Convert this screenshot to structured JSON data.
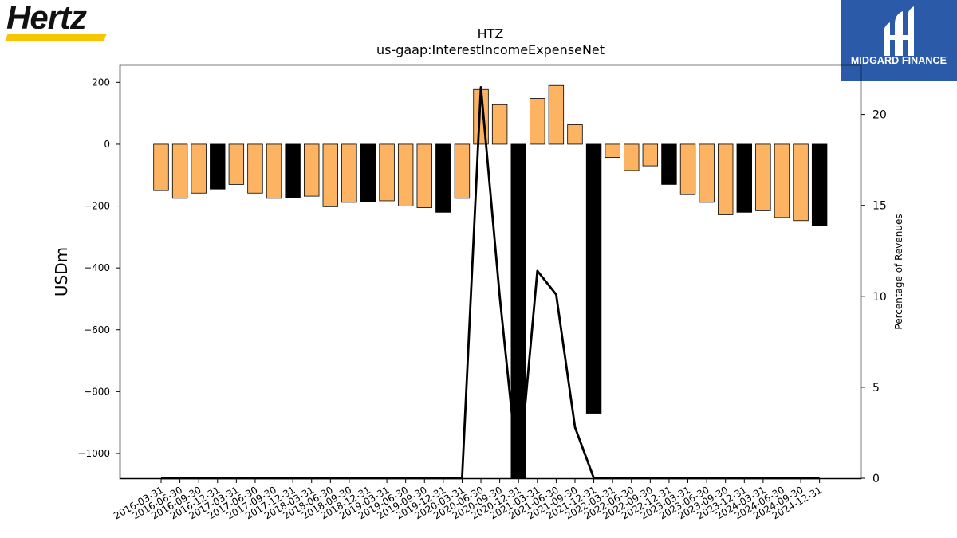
{
  "logos": {
    "company": "Hertz",
    "publisher": "MIDGARD FINANCE"
  },
  "colors": {
    "bar_quarter": "#fdb462",
    "bar_q4": "#000000",
    "line": "#000000",
    "logo_yellow": "#f7c600",
    "logo_blue": "#2a5aa8"
  },
  "chart_data": {
    "type": "bar",
    "title": "HTZ",
    "subtitle": "us-gaap:InterestIncomeExpenseNet",
    "ylabel": "USDm",
    "y2label": "Percentage of Revenues",
    "ylim": [
      -1080,
      255
    ],
    "y2lim": [
      0,
      22.7
    ],
    "yticks": [
      200,
      0,
      -200,
      -400,
      -600,
      -800,
      -1000
    ],
    "y2ticks": [
      0,
      5,
      10,
      15,
      20
    ],
    "grid": false,
    "legend": "none",
    "categories": [
      "2016-03-31",
      "2016-06-30",
      "2016-09-30",
      "2016-12-31",
      "2017-03-31",
      "2017-06-30",
      "2017-09-30",
      "2017-12-31",
      "2018-03-31",
      "2018-06-30",
      "2018-09-30",
      "2018-12-31",
      "2019-03-31",
      "2019-06-30",
      "2019-09-30",
      "2019-12-31",
      "2020-03-31",
      "2020-06-30",
      "2020-09-30",
      "2020-12-31",
      "2021-03-31",
      "2021-06-30",
      "2021-09-30",
      "2021-12-31",
      "2022-03-31",
      "2022-06-30",
      "2022-09-30",
      "2022-12-31",
      "2023-03-31",
      "2023-06-30",
      "2023-09-30",
      "2023-12-31",
      "2024-03-31",
      "2024-06-30",
      "2024-09-30",
      "2024-12-31"
    ],
    "series": [
      {
        "axis": "left",
        "kind": "bar",
        "values": [
          -150,
          -175,
          -158,
          -145,
          -130,
          -158,
          -175,
          -172,
          -168,
          -202,
          -188,
          -185,
          -183,
          -200,
          -205,
          -220,
          -175,
          177,
          128,
          -1080,
          148,
          190,
          63,
          -870,
          -43,
          -85,
          -70,
          -130,
          -163,
          -188,
          -228,
          -220,
          -215,
          -237,
          -247,
          -262
        ],
        "year_end": [
          false,
          false,
          false,
          true,
          false,
          false,
          false,
          true,
          false,
          false,
          false,
          true,
          false,
          false,
          false,
          true,
          false,
          false,
          false,
          true,
          false,
          false,
          false,
          true,
          false,
          false,
          false,
          true,
          false,
          false,
          false,
          true,
          false,
          false,
          false,
          true
        ]
      },
      {
        "axis": "right",
        "kind": "line",
        "values": [
          null,
          null,
          null,
          null,
          null,
          null,
          null,
          null,
          null,
          null,
          null,
          null,
          null,
          null,
          null,
          null,
          null,
          21.5,
          10.0,
          null,
          11.4,
          10.1,
          2.8,
          null,
          null,
          null,
          null,
          null,
          null,
          null,
          null,
          null,
          null,
          null,
          null,
          null
        ]
      }
    ]
  }
}
